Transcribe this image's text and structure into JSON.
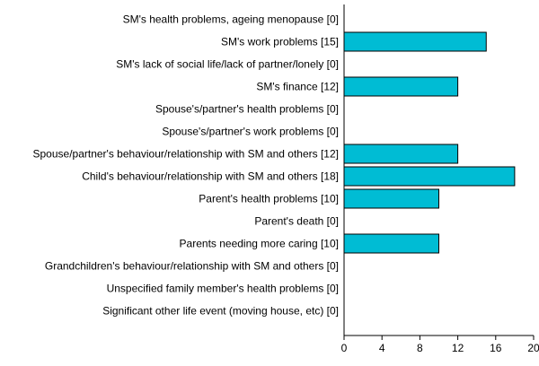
{
  "chart_data": {
    "type": "bar",
    "orientation": "horizontal",
    "title": "",
    "xlabel": "",
    "ylabel": "",
    "categories": [
      "SM's health problems, ageing menopause [0]",
      "SM's work problems [15]",
      "SM's lack of social life/lack of partner/lonely [0]",
      "SM's finance [12]",
      "Spouse's/partner's health problems [0]",
      "Spouse's/partner's work problems [0]",
      "Spouse/partner's behaviour/relationship with SM and others [12]",
      "Child's behaviour/relationship with SM and others [18]",
      "Parent's health problems [10]",
      "Parent's death [0]",
      "Parents needing more caring [10]",
      "Grandchildren's behaviour/relationship with SM and others [0]",
      "Unspecified family member's health problems [0]",
      "Significant other life event (moving house, etc) [0]"
    ],
    "values": [
      0,
      15,
      0,
      12,
      0,
      0,
      12,
      18,
      10,
      0,
      10,
      0,
      0,
      0
    ],
    "xlim": [
      0,
      20
    ],
    "xticks": [
      "0",
      "4",
      "8",
      "12",
      "16",
      "20"
    ],
    "bar_color": "#00bcd4",
    "grid": false,
    "legend": "none"
  }
}
